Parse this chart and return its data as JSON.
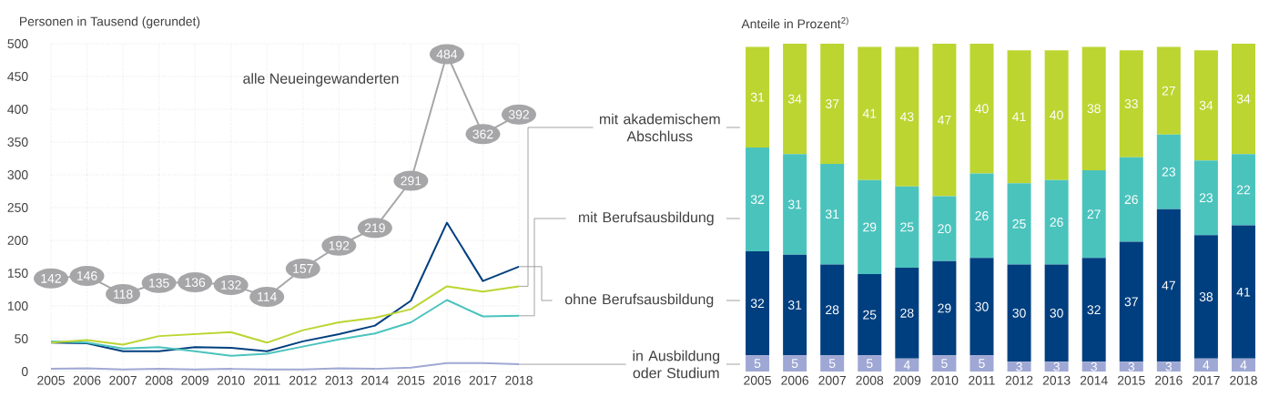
{
  "chart_data": [
    {
      "type": "line",
      "title": "Personen in Tausend (gerundet)",
      "x": [
        2005,
        2006,
        2007,
        2008,
        2009,
        2010,
        2011,
        2012,
        2013,
        2014,
        2015,
        2016,
        2017,
        2018
      ],
      "xlim": [
        2005,
        2018
      ],
      "xticks": [
        2005,
        2006,
        2007,
        2008,
        2009,
        2010,
        2011,
        2012,
        2013,
        2014,
        2015,
        2016,
        2017,
        2018
      ],
      "ylim": [
        0,
        500
      ],
      "yticks": [
        0,
        50,
        100,
        150,
        200,
        250,
        300,
        350,
        400,
        450,
        500
      ],
      "grid": true,
      "series": [
        {
          "name": "alle Neueingewanderten",
          "color": "#a6a6a8",
          "marker": "circle",
          "values": [
            142,
            146,
            118,
            135,
            136,
            132,
            114,
            157,
            192,
            219,
            291,
            484,
            362,
            392
          ],
          "value_labels": [
            "142",
            "146",
            "118",
            "135",
            "136",
            "132",
            "114",
            "157",
            "192",
            "219",
            "291",
            "484",
            "362",
            "392"
          ]
        },
        {
          "color": "#9fa8d4",
          "values": [
            4,
            5,
            3,
            4,
            3,
            4,
            3,
            3,
            5,
            4,
            6,
            13,
            13,
            11
          ]
        },
        {
          "color": "#003f7f",
          "values": [
            44,
            43,
            31,
            31,
            37,
            36,
            31,
            46,
            57,
            70,
            108,
            227,
            138,
            160
          ]
        },
        {
          "color": "#4bc3bd",
          "values": [
            46,
            44,
            35,
            37,
            31,
            24,
            27,
            38,
            49,
            58,
            75,
            109,
            84,
            85
          ]
        },
        {
          "color": "#bcd531",
          "values": [
            44,
            48,
            41,
            54,
            57,
            60,
            44,
            63,
            75,
            82,
            95,
            130,
            122,
            130
          ]
        }
      ]
    },
    {
      "type": "bar",
      "stacked": true,
      "title": "Anteile in Prozent$^{2)}$",
      "categories": [
        "2005",
        "2006",
        "2007",
        "2008",
        "2009",
        "2010",
        "2011",
        "2012",
        "2013",
        "2014",
        "2015",
        "2016",
        "2017",
        "2018"
      ],
      "data_labels": true,
      "series": [
        {
          "name": "in Ausbildung oder Studium",
          "color": "#9fa8d4",
          "values": [
            5,
            5,
            5,
            5,
            4,
            5,
            5,
            3,
            3,
            3,
            3,
            3,
            4,
            4
          ]
        },
        {
          "name": "ohne Berufsausbildung",
          "color": "#003f7f",
          "values": [
            32,
            31,
            28,
            25,
            28,
            29,
            30,
            30,
            30,
            32,
            37,
            47,
            38,
            41
          ]
        },
        {
          "name": "mit Berufsausbildung",
          "color": "#4bc3bd",
          "values": [
            32,
            31,
            31,
            29,
            25,
            20,
            26,
            25,
            26,
            27,
            26,
            23,
            23,
            22
          ]
        },
        {
          "name": "mit akademischem Abschluss",
          "color": "#bcd531",
          "values": [
            31,
            34,
            37,
            41,
            43,
            47,
            40,
            41,
            40,
            38,
            33,
            27,
            34,
            34
          ]
        }
      ]
    }
  ]
}
